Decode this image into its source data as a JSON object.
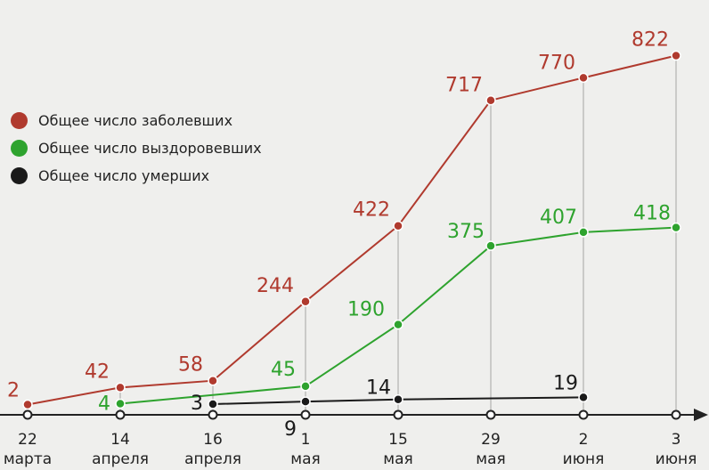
{
  "chart_data": {
    "type": "line",
    "categories": [
      {
        "day": "22",
        "month": "марта"
      },
      {
        "day": "14",
        "month": "апреля"
      },
      {
        "day": "16",
        "month": "апреля"
      },
      {
        "day": "1",
        "month": "мая"
      },
      {
        "day": "15",
        "month": "мая"
      },
      {
        "day": "29",
        "month": "мая"
      },
      {
        "day": "2",
        "month": "июня"
      },
      {
        "day": "3",
        "month": "июня"
      }
    ],
    "series": [
      {
        "name": "Общее число заболевших",
        "color": "#b03a2e",
        "values": [
          2,
          42,
          58,
          244,
          422,
          717,
          770,
          822
        ]
      },
      {
        "name": "Общее число выздоровевших",
        "color": "#2ea32e",
        "values": [
          null,
          4,
          null,
          45,
          190,
          375,
          407,
          418
        ]
      },
      {
        "name": "Общее число умерших",
        "color": "#1a1a1a",
        "values": [
          null,
          null,
          3,
          9,
          14,
          null,
          19,
          null
        ]
      }
    ],
    "ylim": [
      0,
      900
    ],
    "legend": "left",
    "grid": "vertical drop lines"
  }
}
